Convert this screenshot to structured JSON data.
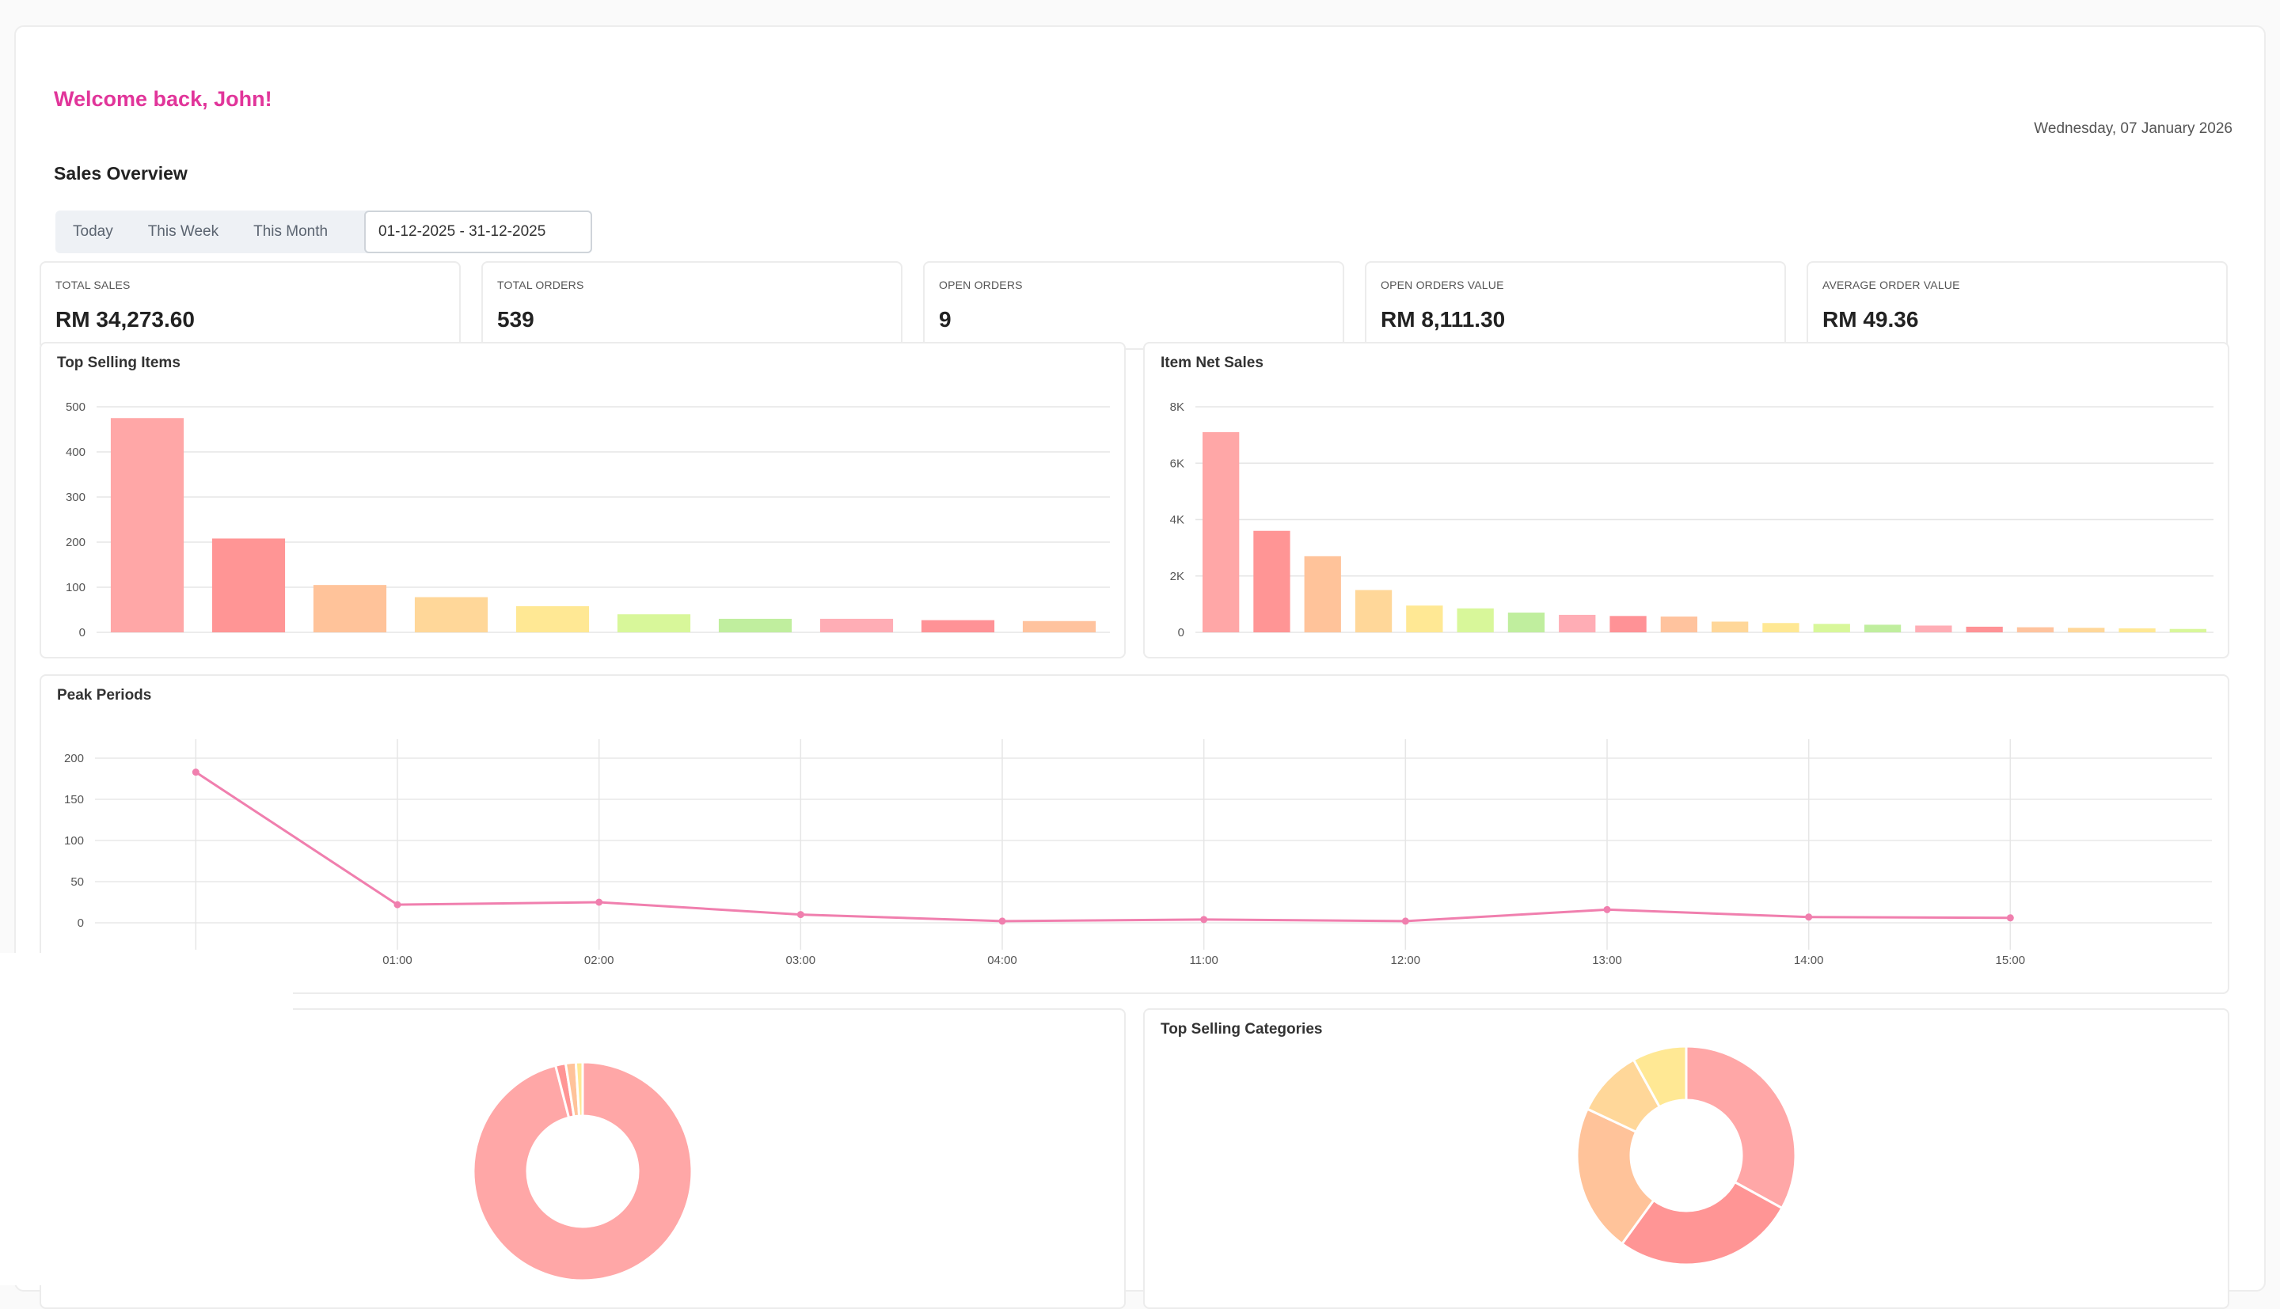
{
  "header": {
    "welcome": "Welcome back, John!",
    "date": "Wednesday, 07 January 2026",
    "section_title": "Sales Overview"
  },
  "filters": {
    "tabs": [
      "Today",
      "This Week",
      "This Month"
    ],
    "date_range": "01-12-2025 - 31-12-2025"
  },
  "kpis": [
    {
      "label": "TOTAL SALES",
      "value": "RM 34,273.60"
    },
    {
      "label": "TOTAL ORDERS",
      "value": "539"
    },
    {
      "label": "OPEN ORDERS",
      "value": "9"
    },
    {
      "label": "OPEN ORDERS VALUE",
      "value": "RM 8,111.30"
    },
    {
      "label": "AVERAGE ORDER VALUE",
      "value": "RM 49.36"
    }
  ],
  "chart_data": [
    {
      "type": "bar",
      "title": "Top Selling Items",
      "values": [
        475,
        208,
        105,
        78,
        58,
        40,
        30,
        30,
        27,
        25
      ],
      "colors": [
        "#ffa7a7",
        "#ff9595",
        "#ffc39a",
        "#ffd799",
        "#ffe894",
        "#d8f79a",
        "#c0ee9e",
        "#ffadb5",
        "#ff9296",
        "#ffc39e"
      ],
      "ylim": [
        0,
        500
      ],
      "yticks": [
        "0",
        "100",
        "200",
        "300",
        "400",
        "500"
      ],
      "grid": true
    },
    {
      "type": "bar",
      "title": "Item Net Sales",
      "values": [
        7100,
        3600,
        2700,
        1500,
        950,
        850,
        700,
        620,
        580,
        560,
        380,
        330,
        300,
        270,
        240,
        200,
        180,
        160,
        140,
        120
      ],
      "colors": [
        "#ffa7a7",
        "#ff9595",
        "#ffc39a",
        "#ffd799",
        "#ffe894",
        "#d8f79a",
        "#c0ee9e",
        "#ffadb5",
        "#ff9296",
        "#ffc39e",
        "#ffd799",
        "#ffe894",
        "#d8f79a",
        "#c0ee9e",
        "#ffadb5",
        "#ff9296",
        "#ffc39e",
        "#ffd799",
        "#ffe894",
        "#d8f79a"
      ],
      "ylim": [
        0,
        8000
      ],
      "yticks": [
        "0",
        "2K",
        "4K",
        "6K",
        "8K"
      ],
      "grid": true
    },
    {
      "type": "line",
      "title": "Peak Periods",
      "categories": [
        "",
        "01:00",
        "02:00",
        "03:00",
        "04:00",
        "11:00",
        "12:00",
        "13:00",
        "14:00",
        "15:00"
      ],
      "values": [
        183,
        22,
        25,
        10,
        2,
        4,
        2,
        16,
        7,
        6
      ],
      "ylim": [
        0,
        200
      ],
      "yticks": [
        "0",
        "50",
        "100",
        "150",
        "200"
      ],
      "color": "#f07fae",
      "grid": true
    },
    {
      "type": "pie",
      "title": "",
      "values": [
        96,
        1.5,
        1.5,
        1
      ],
      "colors": [
        "#ffa7a7",
        "#ff9595",
        "#ffc39a",
        "#ffe894"
      ],
      "donut": true
    },
    {
      "type": "pie",
      "title": "Top Selling Categories",
      "values": [
        33,
        27,
        22,
        10,
        8
      ],
      "colors": [
        "#ffa7a7",
        "#ff9595",
        "#ffc39a",
        "#ffd799",
        "#ffe894"
      ],
      "donut": true
    }
  ]
}
